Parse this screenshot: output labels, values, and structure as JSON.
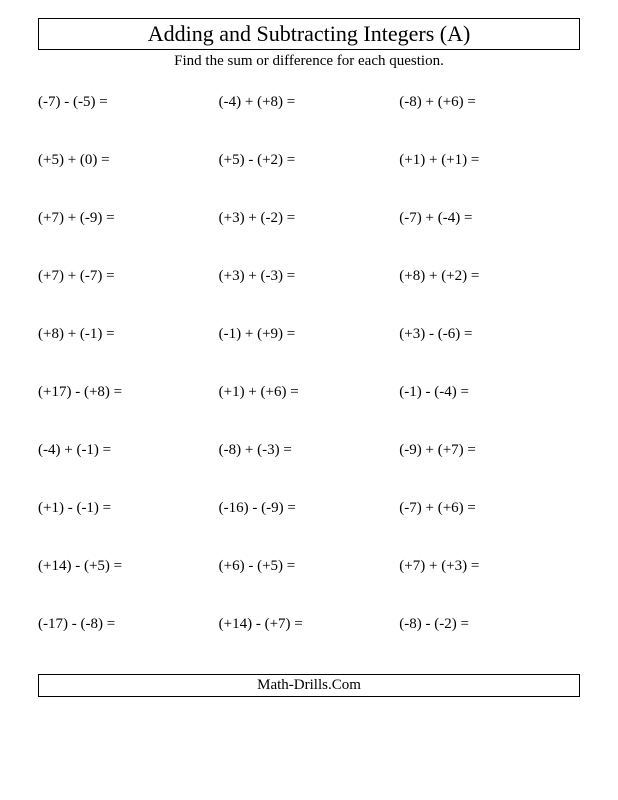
{
  "title": "Adding and Subtracting Integers (A)",
  "subtitle": "Find the sum or difference for each question.",
  "footer": "Math-Drills.Com",
  "style": {
    "page_bg": "#ffffff",
    "text_color": "#000000",
    "border_color": "#000000",
    "title_fontsize": 22,
    "body_fontsize": 15,
    "font_family": "Times New Roman"
  },
  "problems": [
    [
      {
        "a": "(-7)",
        "op": "-",
        "b": "(-5)"
      },
      {
        "a": "(-4)",
        "op": "+",
        "b": "(+8)"
      },
      {
        "a": "(-8)",
        "op": "+",
        "b": "(+6)"
      }
    ],
    [
      {
        "a": "(+5)",
        "op": "+",
        "b": "(0)"
      },
      {
        "a": "(+5)",
        "op": "-",
        "b": "(+2)"
      },
      {
        "a": "(+1)",
        "op": "+",
        "b": "(+1)"
      }
    ],
    [
      {
        "a": "(+7)",
        "op": "+",
        "b": "(-9)"
      },
      {
        "a": "(+3)",
        "op": "+",
        "b": "(-2)"
      },
      {
        "a": "(-7)",
        "op": "+",
        "b": "(-4)"
      }
    ],
    [
      {
        "a": "(+7)",
        "op": "+",
        "b": "(-7)"
      },
      {
        "a": "(+3)",
        "op": "+",
        "b": "(-3)"
      },
      {
        "a": "(+8)",
        "op": "+",
        "b": "(+2)"
      }
    ],
    [
      {
        "a": "(+8)",
        "op": "+",
        "b": "(-1)"
      },
      {
        "a": "(-1)",
        "op": "+",
        "b": "(+9)"
      },
      {
        "a": "(+3)",
        "op": "-",
        "b": "(-6)"
      }
    ],
    [
      {
        "a": "(+17)",
        "op": "-",
        "b": "(+8)"
      },
      {
        "a": "(+1)",
        "op": "+",
        "b": "(+6)"
      },
      {
        "a": "(-1)",
        "op": "-",
        "b": "(-4)"
      }
    ],
    [
      {
        "a": "(-4)",
        "op": "+",
        "b": "(-1)"
      },
      {
        "a": "(-8)",
        "op": "+",
        "b": "(-3)"
      },
      {
        "a": "(-9)",
        "op": "+",
        "b": "(+7)"
      }
    ],
    [
      {
        "a": "(+1)",
        "op": "-",
        "b": "(-1)"
      },
      {
        "a": "(-16)",
        "op": "-",
        "b": "(-9)"
      },
      {
        "a": "(-7)",
        "op": "+",
        "b": "(+6)"
      }
    ],
    [
      {
        "a": "(+14)",
        "op": "-",
        "b": "(+5)"
      },
      {
        "a": "(+6)",
        "op": "-",
        "b": "(+5)"
      },
      {
        "a": "(+7)",
        "op": "+",
        "b": "(+3)"
      }
    ],
    [
      {
        "a": "(-17)",
        "op": "-",
        "b": "(-8)"
      },
      {
        "a": "(+14)",
        "op": "-",
        "b": "(+7)"
      },
      {
        "a": "(-8)",
        "op": "-",
        "b": "(-2)"
      }
    ]
  ]
}
